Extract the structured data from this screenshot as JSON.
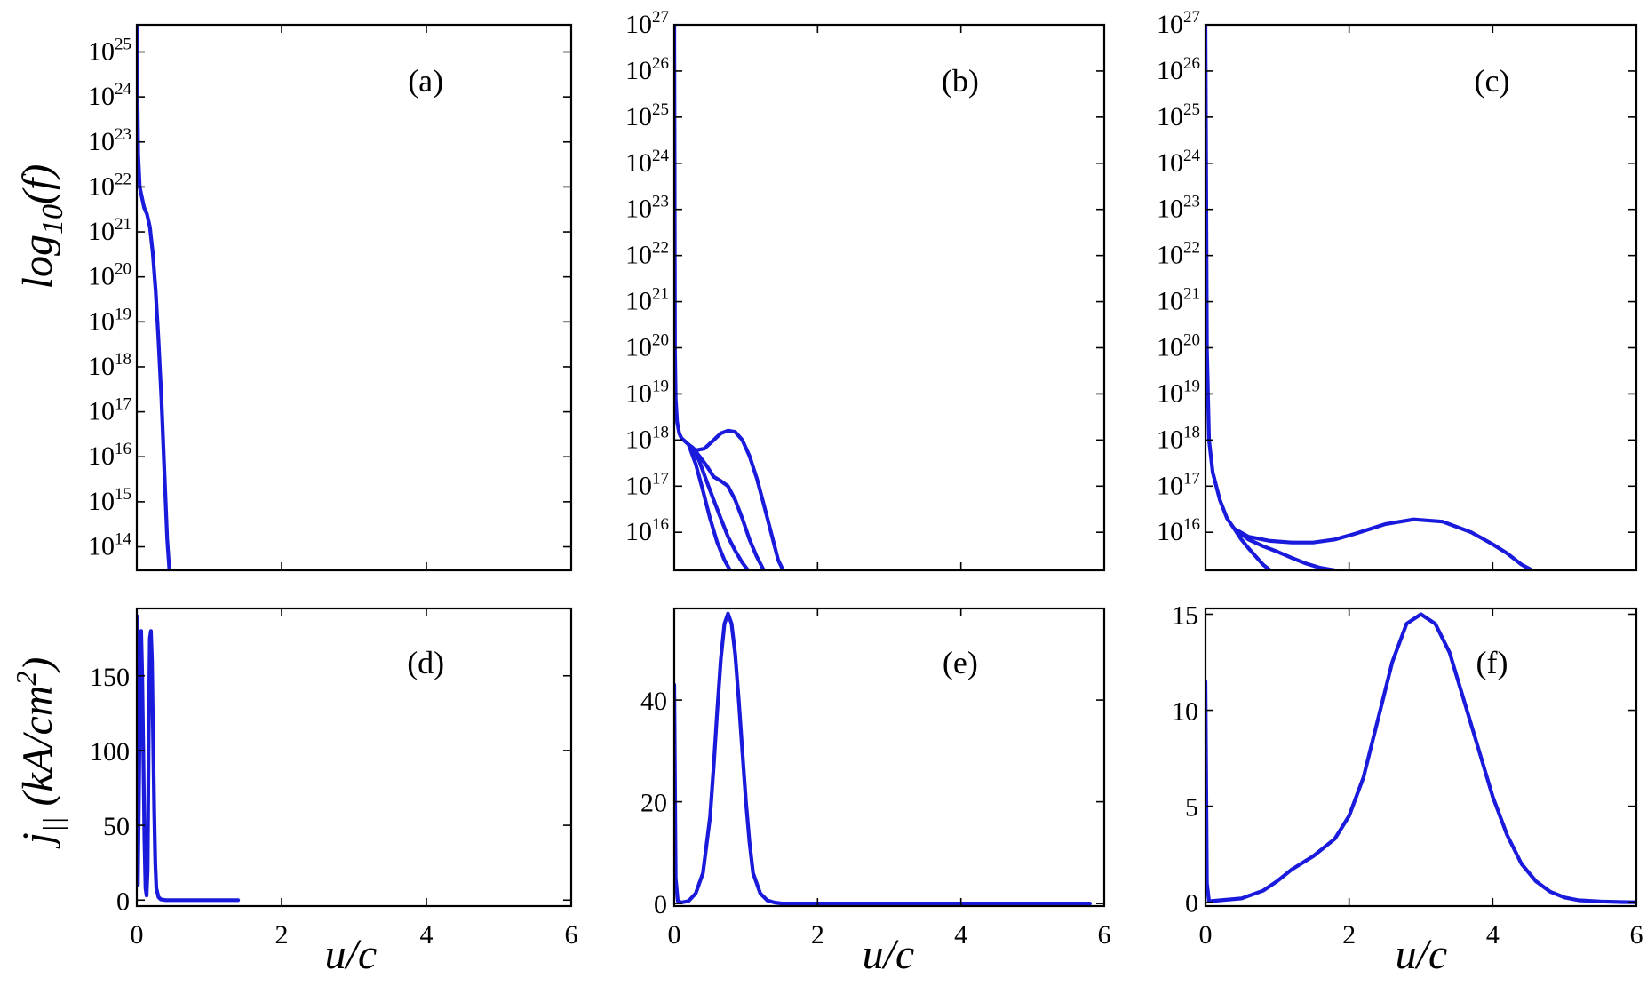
{
  "chart_data": [
    {
      "id": "a",
      "type": "line",
      "panel_label": "(a)",
      "y_scale": "log",
      "xlim": [
        0,
        6
      ],
      "ylim": [
        30000000000000.0,
        4e+25
      ],
      "x_ticks": [
        0,
        2,
        4,
        6
      ],
      "x_tick_labels_shown": false,
      "y_tick_exponents": [
        14,
        15,
        16,
        17,
        18,
        19,
        20,
        21,
        22,
        23,
        24,
        25
      ],
      "line_color": "#1a1adc",
      "series": [
        {
          "x": [
            0,
            0.005,
            0.01,
            0.02,
            0.04,
            0.06,
            0.08,
            0.1
          ],
          "y": [
            4e+25,
            1e+25,
            1e+24,
            5e+22,
            1e+22,
            7e+21,
            5e+21,
            3.5e+21
          ]
        },
        {
          "x": [
            0.1,
            0.14,
            0.18,
            0.22,
            0.26,
            0.3,
            0.34,
            0.38,
            0.42,
            0.45
          ],
          "y": [
            3.5e+21,
            2.5e+21,
            1.3e+21,
            3.5e+20,
            5e+19,
            4e+18,
            2e+17,
            5000000000000000.0,
            150000000000000.0,
            30000000000000.0
          ]
        }
      ]
    },
    {
      "id": "b",
      "type": "line",
      "panel_label": "(b)",
      "y_scale": "log",
      "xlim": [
        0,
        6
      ],
      "ylim": [
        1500000000000000.0,
        1e+27
      ],
      "x_ticks": [
        0,
        2,
        4,
        6
      ],
      "x_tick_labels_shown": false,
      "y_tick_exponents": [
        16,
        17,
        18,
        19,
        20,
        21,
        22,
        23,
        24,
        25,
        26,
        27
      ],
      "line_color": "#1a1adc",
      "series": [
        {
          "x": [
            0,
            0.005,
            0.01,
            0.02,
            0.04,
            0.07,
            0.1
          ],
          "y": [
            1e+27,
            1e+24,
            1e+20,
            8e+18,
            2.5e+18,
            1.4e+18,
            1.1e+18
          ]
        },
        {
          "x": [
            0.1,
            0.2,
            0.3,
            0.42,
            0.55,
            0.65,
            0.75,
            0.85,
            0.95,
            1.05,
            1.15,
            1.25,
            1.35,
            1.45,
            1.52
          ],
          "y": [
            1.1e+18,
            8e+17,
            6e+17,
            6.5e+17,
            1e+18,
            1.4e+18,
            1.6e+18,
            1.5e+18,
            1e+18,
            4.5e+17,
            1.5e+17,
            4e+16,
            1e+16,
            2500000000000000.0,
            1500000000000000.0
          ]
        },
        {
          "x": [
            0.25,
            0.35,
            0.45,
            0.55,
            0.65,
            0.75,
            0.85,
            0.95,
            1.05,
            1.15,
            1.25
          ],
          "y": [
            7e+17,
            4.5e+17,
            2.8e+17,
            1.6e+17,
            1.3e+17,
            1e+17,
            5e+16,
            2e+16,
            7000000000000000.0,
            3000000000000000.0,
            1500000000000000.0
          ]
        },
        {
          "x": [
            0.25,
            0.35,
            0.45,
            0.55,
            0.65,
            0.75,
            0.85,
            0.95,
            1.03
          ],
          "y": [
            7e+17,
            3.5e+17,
            1.3e+17,
            5e+16,
            2e+16,
            8000000000000000.0,
            4000000000000000.0,
            2200000000000000.0,
            1500000000000000.0
          ]
        },
        {
          "x": [
            0.2,
            0.3,
            0.4,
            0.5,
            0.6,
            0.7,
            0.78
          ],
          "y": [
            8e+17,
            3e+17,
            8e+16,
            2e+16,
            6000000000000000.0,
            2500000000000000.0,
            1500000000000000.0
          ]
        }
      ]
    },
    {
      "id": "c",
      "type": "line",
      "panel_label": "(c)",
      "y_scale": "log",
      "xlim": [
        0,
        6
      ],
      "ylim": [
        1500000000000000.0,
        1e+27
      ],
      "x_ticks": [
        0,
        2,
        4,
        6
      ],
      "x_tick_labels_shown": false,
      "y_tick_exponents": [
        16,
        17,
        18,
        19,
        20,
        21,
        22,
        23,
        24,
        25,
        26,
        27
      ],
      "line_color": "#1a1adc",
      "series": [
        {
          "x": [
            0,
            0.02,
            0.05,
            0.1,
            0.2,
            0.3,
            0.4
          ],
          "y": [
            1e+27,
            1e+20,
            1e+18,
            2e+17,
            5e+16,
            2e+16,
            1.2e+16
          ]
        },
        {
          "x": [
            0.4,
            0.6,
            0.9,
            1.2,
            1.5,
            1.8,
            2.1,
            2.5,
            2.9,
            3.3,
            3.7,
            4.0,
            4.2,
            4.4,
            4.55
          ],
          "y": [
            1.2e+16,
            8000000000000000.0,
            6500000000000000.0,
            6000000000000000.0,
            6000000000000000.0,
            7000000000000000.0,
            9500000000000000.0,
            1.5e+16,
            1.9e+16,
            1.7e+16,
            1e+16,
            5500000000000000.0,
            3500000000000000.0,
            2000000000000000.0,
            1500000000000000.0
          ]
        },
        {
          "x": [
            0.4,
            0.6,
            0.8,
            1.0,
            1.2,
            1.4,
            1.6,
            1.8
          ],
          "y": [
            1.2e+16,
            7000000000000000.0,
            5000000000000000.0,
            3800000000000000.0,
            2800000000000000.0,
            2100000000000000.0,
            1700000000000000.0,
            1500000000000000.0
          ]
        },
        {
          "x": [
            0.4,
            0.5,
            0.6,
            0.7,
            0.8,
            0.9
          ],
          "y": [
            1.2e+16,
            7000000000000000.0,
            4500000000000000.0,
            3000000000000000.0,
            2000000000000000.0,
            1500000000000000.0
          ]
        }
      ]
    },
    {
      "id": "d",
      "type": "line",
      "panel_label": "(d)",
      "y_scale": "linear",
      "xlim": [
        0,
        6
      ],
      "ylim": [
        -4,
        195
      ],
      "x_ticks": [
        0,
        2,
        4,
        6
      ],
      "x_tick_labels": [
        "0",
        "2",
        "4",
        "6"
      ],
      "y_ticks": [
        0,
        50,
        100,
        150
      ],
      "y_tick_labels": [
        "0",
        "50",
        "100",
        "150"
      ],
      "line_color": "#1a1adc",
      "series": [
        {
          "x": [
            0,
            0.015,
            0.03,
            0.045,
            0.06,
            0.075,
            0.09,
            0.105,
            0.12,
            0.135,
            0.15,
            0.165,
            0.18,
            0.195,
            0.21,
            0.225,
            0.24,
            0.255,
            0.27,
            0.3,
            0.33,
            0.4,
            0.6,
            0.8,
            1.0,
            1.2,
            1.4
          ],
          "y": [
            190,
            10,
            70,
            140,
            180,
            150,
            100,
            40,
            8,
            3,
            20,
            110,
            175,
            180,
            160,
            110,
            60,
            25,
            8,
            2,
            0.5,
            0,
            0,
            0,
            0,
            0,
            0
          ]
        }
      ]
    },
    {
      "id": "e",
      "type": "line",
      "panel_label": "(e)",
      "y_scale": "linear",
      "xlim": [
        0,
        6
      ],
      "ylim": [
        -0.5,
        58
      ],
      "x_ticks": [
        0,
        2,
        4,
        6
      ],
      "x_tick_labels": [
        "0",
        "2",
        "4",
        "6"
      ],
      "y_ticks": [
        0,
        20,
        40
      ],
      "y_tick_labels": [
        "0",
        "20",
        "40"
      ],
      "line_color": "#1a1adc",
      "series": [
        {
          "x": [
            0,
            0.02,
            0.05,
            0.1,
            0.2,
            0.3,
            0.4,
            0.5,
            0.55,
            0.6,
            0.65,
            0.7,
            0.75,
            0.8,
            0.85,
            0.9,
            0.95,
            1.0,
            1.05,
            1.1,
            1.2,
            1.3,
            1.4,
            1.5,
            1.6,
            1.8,
            2.5,
            3.5,
            4.5,
            5.8
          ],
          "y": [
            43,
            5,
            0.5,
            0.2,
            0.5,
            2,
            6,
            17,
            27,
            38,
            48,
            55,
            57,
            55,
            49,
            40,
            30,
            20,
            12,
            6,
            2,
            0.6,
            0.2,
            0,
            0,
            0,
            0,
            0,
            0,
            0
          ]
        }
      ]
    },
    {
      "id": "f",
      "type": "line",
      "panel_label": "(f)",
      "y_scale": "linear",
      "xlim": [
        0,
        6
      ],
      "ylim": [
        -0.2,
        15.3
      ],
      "x_ticks": [
        0,
        2,
        4,
        6
      ],
      "x_tick_labels": [
        "0",
        "2",
        "4",
        "6"
      ],
      "y_ticks": [
        0,
        5,
        10,
        15
      ],
      "y_tick_labels": [
        "0",
        "5",
        "10",
        "15"
      ],
      "line_color": "#1a1adc",
      "series": [
        {
          "x": [
            0,
            0.02,
            0.05,
            0.2,
            0.5,
            0.8,
            1.0,
            1.2,
            1.5,
            1.8,
            2.0,
            2.2,
            2.4,
            2.6,
            2.8,
            3.0,
            3.2,
            3.4,
            3.6,
            3.8,
            4.0,
            4.2,
            4.4,
            4.6,
            4.8,
            5.0,
            5.2,
            5.5,
            5.8,
            6.0
          ],
          "y": [
            11.5,
            1,
            0.05,
            0.1,
            0.2,
            0.6,
            1.1,
            1.7,
            2.4,
            3.3,
            4.5,
            6.5,
            9.5,
            12.5,
            14.5,
            15,
            14.5,
            13,
            10.5,
            8,
            5.5,
            3.5,
            2,
            1.1,
            0.55,
            0.25,
            0.1,
            0.04,
            0.01,
            0
          ]
        }
      ]
    }
  ],
  "y_axis_labels": {
    "top": {
      "base": "log",
      "sub": "10",
      "rest": "(f)"
    },
    "bottom": {
      "base": "j",
      "sub": "||",
      "rest": " (kA/cm",
      "sup": "2",
      "close": ")"
    }
  },
  "x_axis_label": "u/c",
  "log_tick_base": "10"
}
